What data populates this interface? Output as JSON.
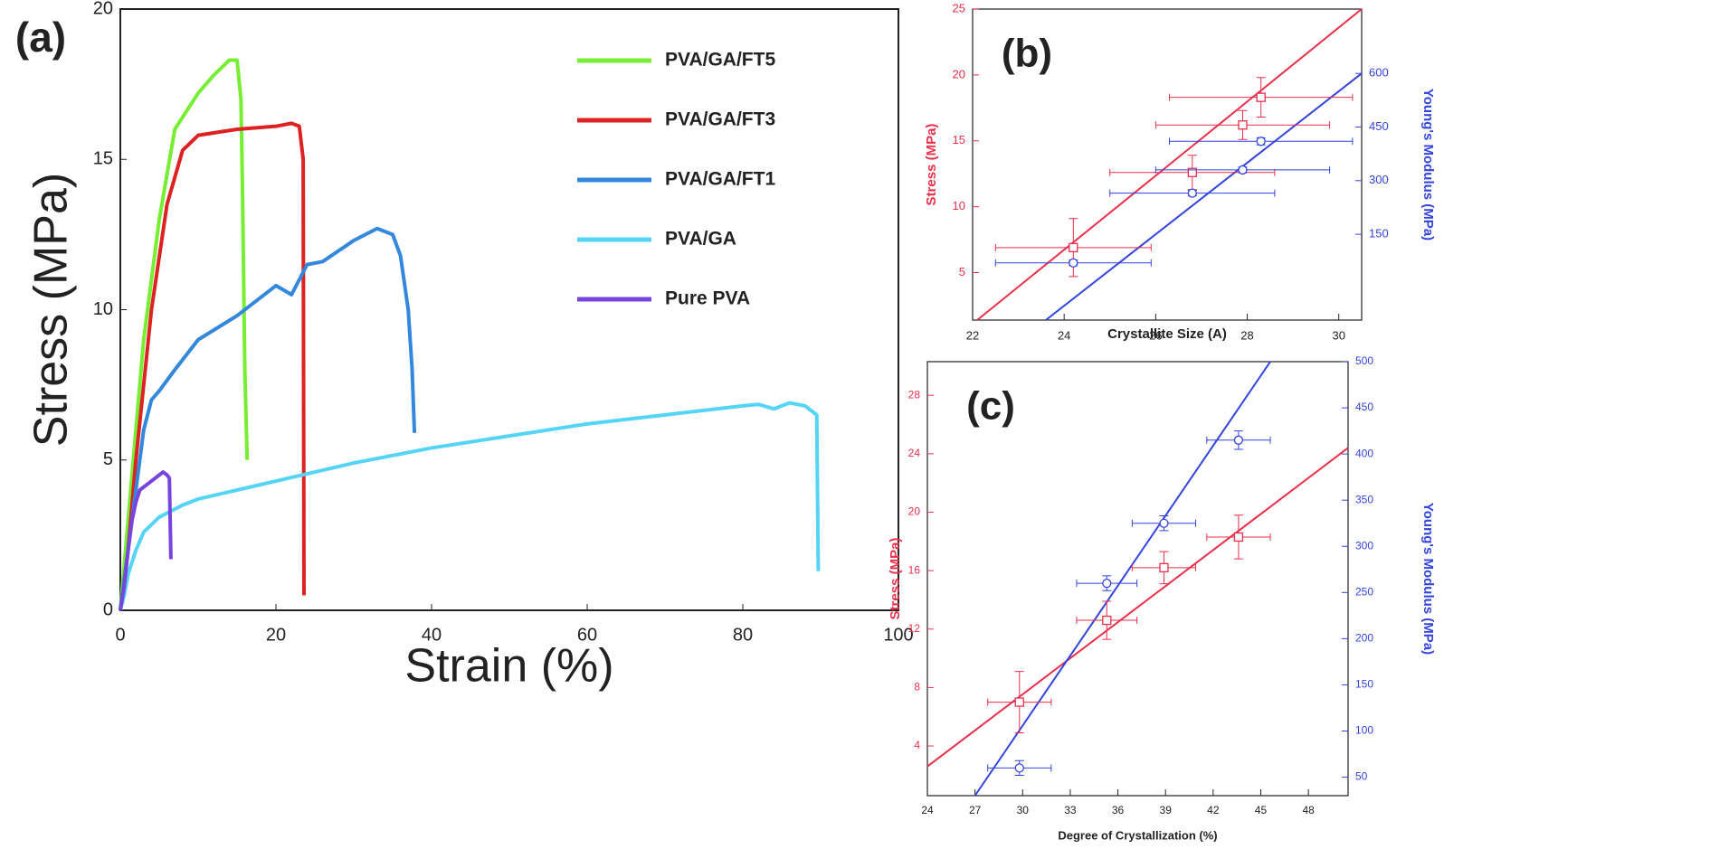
{
  "chart_data": [
    {
      "type": "line",
      "panel_label": "(a)",
      "x_label": "Strain (%)",
      "y_label": "Stress (MPa)",
      "xlim": [
        0,
        100
      ],
      "ylim": [
        0,
        20
      ],
      "xticks": [
        0,
        20,
        40,
        60,
        80,
        100
      ],
      "yticks": [
        0,
        5,
        10,
        15,
        20
      ],
      "legend": "upper right",
      "series": [
        {
          "name": "PVA/GA/FT5",
          "color": "#77ee33",
          "x": [
            0,
            1,
            2,
            3,
            5,
            7,
            10,
            12,
            14,
            15,
            15.5,
            15.7,
            16,
            16.3
          ],
          "values": [
            0,
            3,
            6,
            9,
            13,
            16,
            17.2,
            17.8,
            18.3,
            18.3,
            17,
            14,
            8,
            5
          ]
        },
        {
          "name": "PVA/GA/FT3",
          "color": "#dd2222",
          "x": [
            0,
            1,
            2,
            4,
            6,
            8,
            10,
            15,
            20,
            22,
            23,
            23.5,
            23.6
          ],
          "values": [
            0,
            2,
            5,
            10,
            13.5,
            15.3,
            15.8,
            16,
            16.1,
            16.2,
            16.1,
            15,
            0.5
          ]
        },
        {
          "name": "PVA/GA/FT1",
          "color": "#3388dd",
          "x": [
            0,
            1,
            2,
            3,
            4,
            5,
            7,
            10,
            15,
            20,
            22,
            24,
            26,
            30,
            33,
            35,
            36,
            37,
            37.5,
            37.8
          ],
          "values": [
            0,
            2,
            4,
            6,
            7,
            7.3,
            8,
            9,
            9.8,
            10.8,
            10.5,
            11.5,
            11.6,
            12.3,
            12.7,
            12.5,
            11.8,
            10,
            8,
            5.9
          ]
        },
        {
          "name": "PVA/GA",
          "color": "#55d4f5",
          "x": [
            0,
            0.5,
            1,
            2,
            3,
            5,
            8,
            10,
            15,
            20,
            25,
            30,
            40,
            50,
            60,
            70,
            80,
            82,
            84,
            86,
            88,
            89.5,
            89.7
          ],
          "values": [
            0,
            0.5,
            1.2,
            2,
            2.6,
            3.1,
            3.5,
            3.7,
            4,
            4.3,
            4.6,
            4.9,
            5.4,
            5.8,
            6.2,
            6.5,
            6.8,
            6.85,
            6.7,
            6.9,
            6.8,
            6.5,
            1.3
          ]
        },
        {
          "name": "Pure PVA",
          "color": "#7744dd",
          "x": [
            0,
            0.5,
            1,
            1.5,
            2,
            2.5,
            3,
            4,
            5,
            5.5,
            6,
            6.3,
            6.5
          ],
          "values": [
            0,
            0.8,
            2,
            3,
            3.6,
            4,
            4.1,
            4.3,
            4.5,
            4.6,
            4.5,
            4.4,
            1.7
          ]
        }
      ]
    },
    {
      "type": "scatter",
      "panel_label": "(b)",
      "x_label": "Crystallite Size (A)",
      "y_label": "Stress (MPa)",
      "y2_label": "Young's Modulus (MPa)",
      "xlim": [
        22,
        30.5
      ],
      "ylim": [
        1.4,
        25
      ],
      "y2lim": [
        -90,
        780
      ],
      "xticks": [
        22,
        24,
        26,
        28,
        30
      ],
      "yticks": [
        5,
        10,
        15,
        20,
        25
      ],
      "y2ticks": [
        150,
        300,
        450,
        600
      ],
      "y_axis_color": "#e8304a",
      "y2_axis_color": "#3344dd",
      "series": [
        {
          "color": "#e8304a",
          "marker": "square",
          "x": [
            24.2,
            26.8,
            27.9,
            28.3
          ],
          "values": [
            6.9,
            12.6,
            16.2,
            18.3
          ],
          "xerr": [
            1.7,
            1.8,
            1.9,
            2.0
          ],
          "yerr": [
            2.2,
            1.3,
            1.1,
            1.5
          ]
        },
        {
          "color": "#3344dd",
          "marker": "circle",
          "axis": "y2",
          "x": [
            24.2,
            26.8,
            27.9,
            28.3
          ],
          "values": [
            70,
            265,
            330,
            410
          ],
          "xerr": [
            1.7,
            1.8,
            1.9,
            2.0
          ],
          "yerr": [
            8,
            8,
            8,
            10
          ]
        }
      ],
      "fits": [
        {
          "color": "#e8304a",
          "x": [
            22.1,
            30.5
          ],
          "values": [
            1.4,
            25
          ]
        },
        {
          "color": "#3344dd",
          "axis": "y2",
          "x": [
            23.6,
            30.5
          ],
          "values": [
            -90,
            600
          ]
        }
      ]
    },
    {
      "type": "scatter",
      "panel_label": "(c)",
      "x_label": "Degree of Crystallization (%)",
      "y_label": "Stress (MPa)",
      "y2_label": "Young's Modulus (MPa)",
      "xlim": [
        24,
        50.5
      ],
      "ylim": [
        0.6,
        30.3
      ],
      "y2lim": [
        30,
        500
      ],
      "xticks": [
        24,
        27,
        30,
        33,
        36,
        39,
        42,
        45,
        48
      ],
      "yticks": [
        4,
        8,
        12,
        16,
        20,
        24,
        28
      ],
      "y2ticks": [
        50,
        100,
        150,
        200,
        250,
        300,
        350,
        400,
        450,
        500
      ],
      "y_axis_color": "#e8304a",
      "y2_axis_color": "#3344dd",
      "series": [
        {
          "color": "#e8304a",
          "marker": "square",
          "x": [
            29.8,
            35.3,
            38.9,
            43.6
          ],
          "values": [
            7.0,
            12.6,
            16.2,
            18.3
          ],
          "xerr": [
            2.0,
            1.9,
            2.0,
            2.0
          ],
          "yerr": [
            2.1,
            1.3,
            1.1,
            1.5
          ]
        },
        {
          "color": "#3344dd",
          "marker": "circle",
          "axis": "y2",
          "x": [
            29.8,
            35.3,
            38.9,
            43.6
          ],
          "values": [
            60,
            260,
            325,
            415
          ],
          "xerr": [
            2.0,
            1.9,
            2.0,
            2.0
          ],
          "yerr": [
            8,
            8,
            8,
            10
          ]
        }
      ],
      "fits": [
        {
          "color": "#e8304a",
          "x": [
            24,
            50.5
          ],
          "values": [
            2.6,
            24.4
          ]
        },
        {
          "color": "#3344dd",
          "axis": "y2",
          "x": [
            27,
            45.6
          ],
          "values": [
            30,
            500
          ]
        }
      ]
    }
  ]
}
